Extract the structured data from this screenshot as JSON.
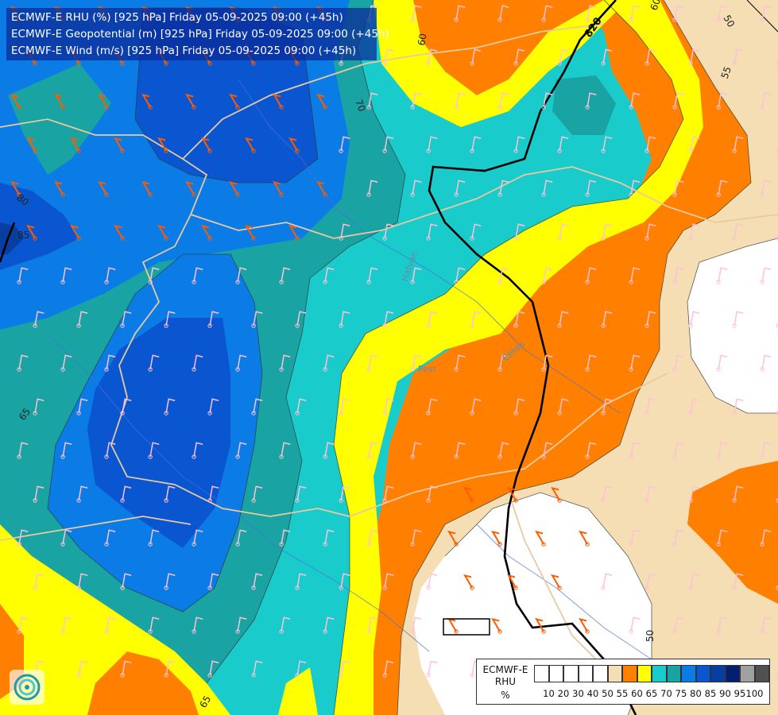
{
  "header": {
    "line1": "ECMWF-E RHU (%) [925 hPa] Friday 05-09-2025 09:00 (+45h)",
    "line2": "ECMWF-E Geopotential (m) [925 hPa] Friday 05-09-2025 09:00 (+45h)",
    "line3": "ECMWF-E Wind (m/s) [925 hPa] Friday 05-09-2025 09:00 (+45h)"
  },
  "legend": {
    "title_line1": "ECMWF-E",
    "title_line2": "RHU",
    "unit": "%",
    "ticks": [
      "10",
      "20",
      "30",
      "40",
      "50",
      "55",
      "60",
      "65",
      "70",
      "75",
      "80",
      "85",
      "90",
      "95",
      "100"
    ],
    "colors": [
      "#ffffff",
      "#ffffff",
      "#ffffff",
      "#ffffff",
      "#ffffff",
      "#f5deb3",
      "#ff8000",
      "#ffff00",
      "#19cbcb",
      "#1aa3a3",
      "#0b7ce6",
      "#0a56d0",
      "#073ea0",
      "#041e70",
      "#a0a0a0",
      "#505050"
    ]
  },
  "contour_labels": [
    "60",
    "50",
    "55",
    "70",
    "80",
    "85",
    "65",
    "50",
    "60",
    "65"
  ],
  "geopotential_label": "820",
  "place_labels": [
    "Hatvan",
    "Pest",
    "Békés"
  ],
  "colors": {
    "rhu_50": "#ffffff",
    "rhu_55": "#f5deb3",
    "rhu_60": "#ff8000",
    "rhu_65": "#ffff00",
    "rhu_70": "#19cbcb",
    "rhu_75": "#1aa3a3",
    "rhu_80": "#0b7ce6",
    "rhu_85": "#0a56d0",
    "rhu_90": "#073ea0",
    "geopotential_line": "#000000",
    "wind_barb_strong": "#ff5a00",
    "wind_barb_weak": "#ffc0d8"
  }
}
